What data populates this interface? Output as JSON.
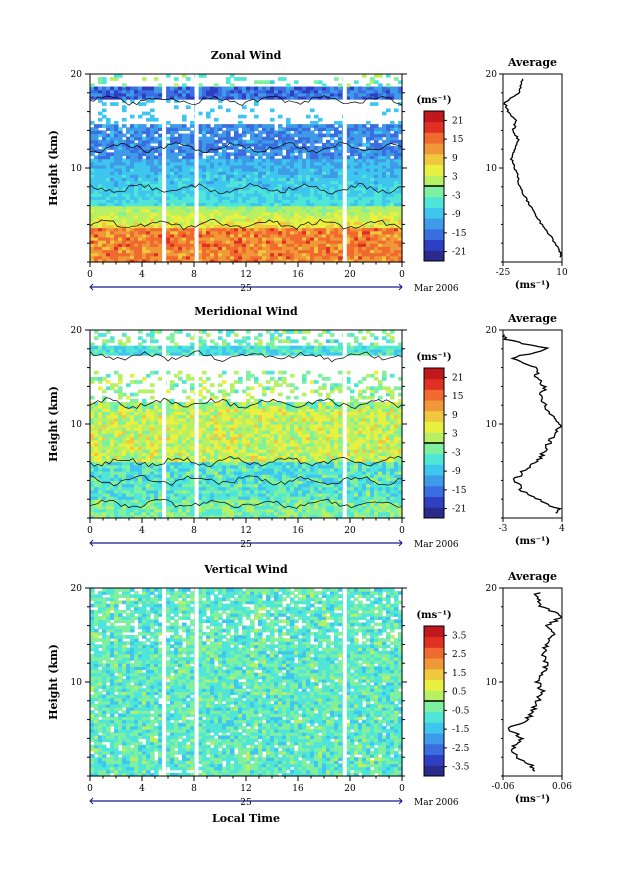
{
  "colors": {
    "scale": [
      "#2a2a8c",
      "#2f3fc4",
      "#3a6ee0",
      "#3f9ae8",
      "#3fc6ee",
      "#4fe6d8",
      "#7ef0a0",
      "#b8f064",
      "#eaf040",
      "#f0c840",
      "#f09838",
      "#f06a30",
      "#e03024",
      "#c0181c"
    ],
    "gap": "#ffffff",
    "line": "#000000"
  },
  "panels": [
    {
      "title": "Zonal Wind",
      "ylabel": "Height (km)",
      "ylim": [
        0,
        20
      ],
      "yticks": [
        "10",
        "20"
      ],
      "xticks": [
        "0",
        "4",
        "8",
        "12",
        "16",
        "20",
        "0"
      ],
      "date_day": "25",
      "date_month": "Mar 2006",
      "unit": "(ms⁻¹)",
      "cbar_ticks": [
        "21",
        "15",
        "9",
        "3",
        "-3",
        "-9",
        "-15",
        "-21"
      ],
      "cbar_range": [
        -24,
        24
      ],
      "profile_title": "Average",
      "profile_yticks": [
        "10",
        "20"
      ],
      "profile_xticks": [
        "-25",
        "10"
      ],
      "profile_unit": "(ms⁻¹)"
    },
    {
      "title": "Meridional Wind",
      "ylabel": "Height (km)",
      "ylim": [
        0,
        20
      ],
      "yticks": [
        "10",
        "20"
      ],
      "xticks": [
        "0",
        "4",
        "8",
        "12",
        "16",
        "20",
        "0"
      ],
      "date_day": "25",
      "date_month": "Mar 2006",
      "unit": "(ms⁻¹)",
      "cbar_ticks": [
        "21",
        "15",
        "9",
        "3",
        "-3",
        "-9",
        "-15",
        "-21"
      ],
      "cbar_range": [
        -24,
        24
      ],
      "profile_title": "Average",
      "profile_yticks": [
        "10",
        "20"
      ],
      "profile_xticks": [
        "-3",
        "4"
      ],
      "profile_unit": "(ms⁻¹)"
    },
    {
      "title": "Vertical Wind",
      "ylabel": "Height (km)",
      "ylim": [
        0,
        20
      ],
      "yticks": [
        "10",
        "20"
      ],
      "xticks": [
        "0",
        "4",
        "8",
        "12",
        "16",
        "20",
        "0"
      ],
      "date_day": "25",
      "date_month": "Mar 2006",
      "unit": "(ms⁻¹)",
      "cbar_ticks": [
        "3.5",
        "2.5",
        "1.5",
        "0.5",
        "-0.5",
        "-1.5",
        "-2.5",
        "-3.5"
      ],
      "cbar_range": [
        -4,
        4
      ],
      "profile_title": "Average",
      "profile_yticks": [
        "10",
        "20"
      ],
      "profile_xticks": [
        "-0.06",
        "0.06"
      ],
      "profile_unit": "(ms⁻¹)"
    }
  ],
  "xlabel": "Local Time",
  "chart_data": [
    {
      "type": "heatmap",
      "title": "Zonal Wind",
      "xlabel": "",
      "ylabel": "Height (km)",
      "xlim": [
        0,
        24
      ],
      "ylim": [
        0,
        20
      ],
      "data_gaps_hours": [
        5.7,
        8.2,
        19.6
      ],
      "colorbar_unit": "(ms⁻¹)",
      "colorbar_range": [
        -24,
        24
      ],
      "profile": {
        "title": "Average",
        "xlim": [
          -25,
          10
        ],
        "height": [
          1,
          2,
          3,
          4,
          5,
          6,
          7,
          8,
          9,
          10,
          11,
          12,
          13,
          14,
          15,
          16,
          17,
          18,
          19
        ],
        "value": [
          9,
          6,
          2,
          -2,
          -6,
          -9,
          -12,
          -15,
          -16,
          -18,
          -20,
          -18,
          -16,
          -19,
          -17,
          -22,
          -24,
          -15,
          -14
        ]
      }
    },
    {
      "type": "heatmap",
      "title": "Meridional Wind",
      "xlabel": "",
      "ylabel": "Height (km)",
      "xlim": [
        0,
        24
      ],
      "ylim": [
        0,
        20
      ],
      "data_gaps_hours": [
        5.7,
        8.2,
        19.6
      ],
      "colorbar_unit": "(ms⁻¹)",
      "colorbar_range": [
        -24,
        24
      ],
      "profile": {
        "title": "Average",
        "xlim": [
          -3,
          4
        ],
        "height": [
          1,
          2,
          3,
          4,
          5,
          6,
          7,
          8,
          9,
          10,
          11,
          12,
          13,
          14,
          15,
          16,
          17,
          18,
          19
        ],
        "value": [
          3.5,
          1.2,
          -0.8,
          -1.6,
          -0.5,
          1.0,
          1.8,
          2.5,
          3.2,
          3.8,
          2.6,
          2.2,
          1.4,
          2.0,
          0.8,
          1.2,
          -2.0,
          2.5,
          -2.8
        ]
      }
    },
    {
      "type": "heatmap",
      "title": "Vertical Wind",
      "xlabel": "Local Time",
      "ylabel": "Height (km)",
      "xlim": [
        0,
        24
      ],
      "ylim": [
        0,
        20
      ],
      "data_gaps_hours": [
        5.7,
        8.2,
        19.6
      ],
      "colorbar_unit": "(ms⁻¹)",
      "colorbar_range": [
        -4,
        4
      ],
      "profile": {
        "title": "Average",
        "xlim": [
          -0.06,
          0.06
        ],
        "height": [
          1,
          2,
          3,
          4,
          5,
          6,
          7,
          8,
          9,
          10,
          11,
          12,
          13,
          14,
          15,
          16,
          17,
          18,
          19
        ],
        "value": [
          0.0,
          -0.03,
          -0.04,
          -0.02,
          -0.05,
          -0.01,
          0.0,
          0.01,
          0.02,
          0.01,
          0.02,
          0.03,
          0.02,
          0.03,
          0.04,
          0.03,
          0.06,
          0.02,
          0.01
        ]
      }
    }
  ]
}
